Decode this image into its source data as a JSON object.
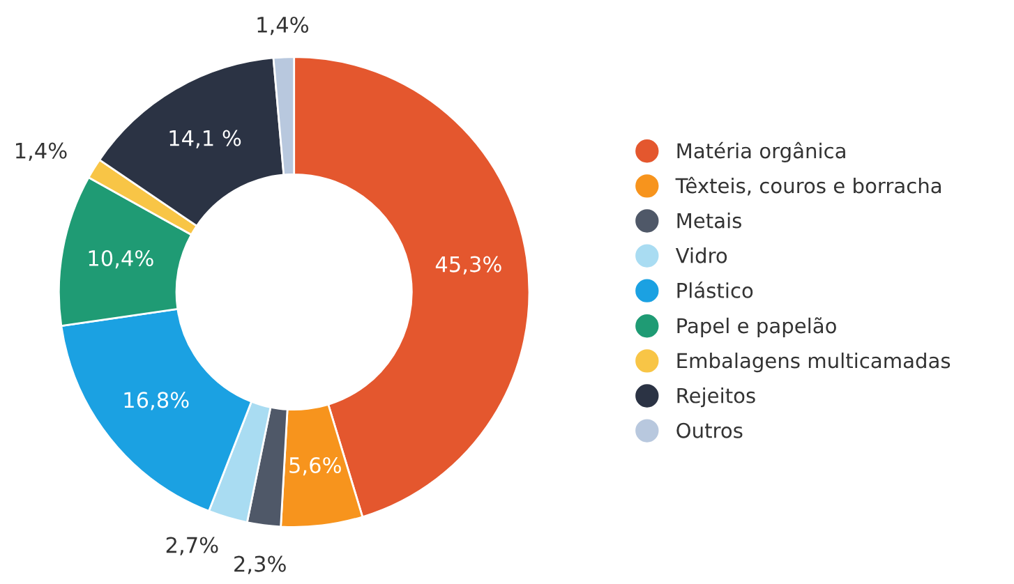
{
  "chart_data": {
    "type": "donut",
    "categories": [
      "Matéria orgânica",
      "Têxteis, couros e borracha",
      "Metais",
      "Vidro",
      "Plástico",
      "Papel e papelão",
      "Embalagens multicamadas",
      "Rejeitos",
      "Outros"
    ],
    "values": [
      45.3,
      5.6,
      2.3,
      2.7,
      16.8,
      10.4,
      1.4,
      14.1,
      1.4
    ],
    "value_labels": [
      "45,3%",
      "5,6%",
      "2,3%",
      "2,7%",
      "16,8%",
      "10,4%",
      "1,4%",
      "14,1 %",
      "1,4%"
    ],
    "colors": [
      "#e4572e",
      "#f7941d",
      "#4f5868",
      "#a9dcf2",
      "#1ba1e2",
      "#1f9b74",
      "#f8c546",
      "#2b3344",
      "#b8c8de"
    ],
    "legend": "right"
  }
}
